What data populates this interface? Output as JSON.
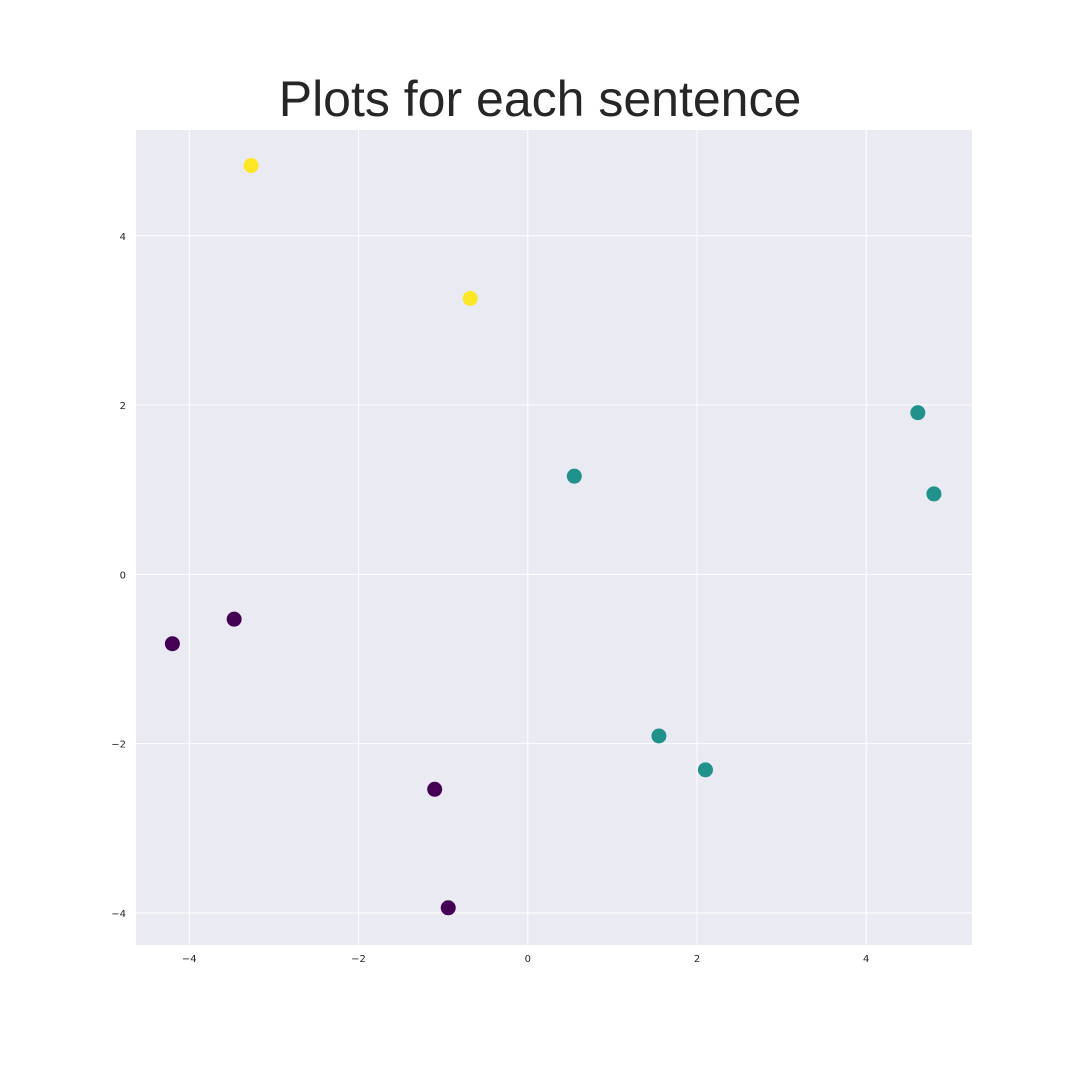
{
  "chart_data": {
    "type": "scatter",
    "title": "Plots for each sentence",
    "xlabel": "",
    "ylabel": "",
    "xlim": [
      -4.63,
      5.25
    ],
    "ylim": [
      -4.38,
      5.25
    ],
    "xticks": [
      -4,
      -2,
      0,
      2,
      4
    ],
    "yticks": [
      -4,
      -2,
      0,
      2,
      4
    ],
    "xtick_labels": [
      "−4",
      "−2",
      "0",
      "2",
      "4"
    ],
    "ytick_labels": [
      "−4",
      "−2",
      "0",
      "2",
      "4"
    ],
    "grid": true,
    "colors": {
      "plot_background": "#eaeaf2",
      "grid": "#ffffff",
      "group_0": "#440154",
      "group_1": "#21918c",
      "group_2": "#fde725"
    },
    "series": [
      {
        "group": 0,
        "color": "#440154",
        "points": [
          {
            "x": -4.2,
            "y": -0.82
          },
          {
            "x": -3.47,
            "y": -0.53
          },
          {
            "x": -1.1,
            "y": -2.54
          },
          {
            "x": -0.94,
            "y": -3.94
          }
        ]
      },
      {
        "group": 1,
        "color": "#21918c",
        "points": [
          {
            "x": 0.55,
            "y": 1.16
          },
          {
            "x": 1.55,
            "y": -1.91
          },
          {
            "x": 2.1,
            "y": -2.31
          },
          {
            "x": 4.61,
            "y": 1.91
          },
          {
            "x": 4.8,
            "y": 0.95
          }
        ]
      },
      {
        "group": 2,
        "color": "#fde725",
        "points": [
          {
            "x": -3.27,
            "y": 4.83
          },
          {
            "x": -0.68,
            "y": 3.26
          }
        ]
      }
    ]
  }
}
